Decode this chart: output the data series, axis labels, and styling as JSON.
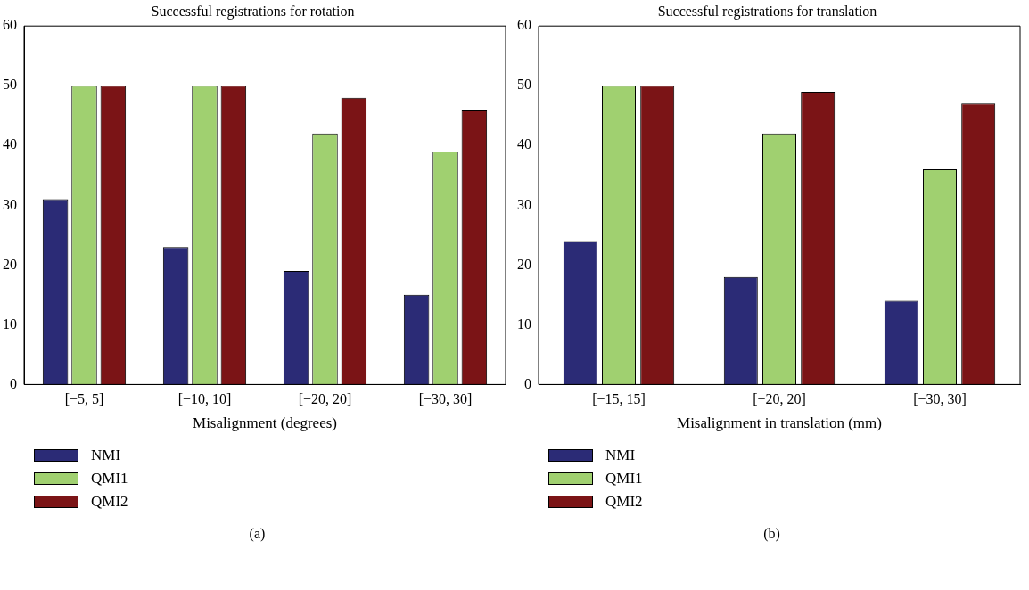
{
  "chart_data": [
    {
      "type": "bar",
      "title": "Successful registrations for rotation",
      "xlabel": "Misalignment (degrees)",
      "categories": [
        "[−5, 5]",
        "[−10, 10]",
        "[−20, 20]",
        "[−30, 30]"
      ],
      "series": [
        {
          "name": "NMI",
          "color": "#2b2b76",
          "values": [
            31,
            23,
            19,
            15
          ]
        },
        {
          "name": "QMI1",
          "color": "#a0d070",
          "values": [
            50,
            50,
            42,
            39
          ]
        },
        {
          "name": "QMI2",
          "color": "#7b1416",
          "values": [
            50,
            50,
            48,
            46
          ]
        }
      ],
      "ylim": [
        0,
        60
      ],
      "yticks": [
        0,
        10,
        20,
        30,
        40,
        50,
        60
      ],
      "grid": false,
      "legend": "bottom left",
      "annotations": [
        "(a)"
      ]
    },
    {
      "type": "bar",
      "title": "Successful registrations for translation",
      "xlabel": "Misalignment in translation (mm)",
      "categories": [
        "[−15, 15]",
        "[−20, 20]",
        "[−30, 30]"
      ],
      "series": [
        {
          "name": "NMI",
          "color": "#2b2b76",
          "values": [
            24,
            18,
            14
          ]
        },
        {
          "name": "QMI1",
          "color": "#a0d070",
          "values": [
            50,
            42,
            36
          ]
        },
        {
          "name": "QMI2",
          "color": "#7b1416",
          "values": [
            50,
            49,
            47
          ]
        }
      ],
      "ylim": [
        0,
        60
      ],
      "yticks": [
        0,
        10,
        20,
        30,
        40,
        50,
        60
      ],
      "grid": false,
      "legend": "bottom left",
      "annotations": [
        "(b)"
      ]
    }
  ]
}
